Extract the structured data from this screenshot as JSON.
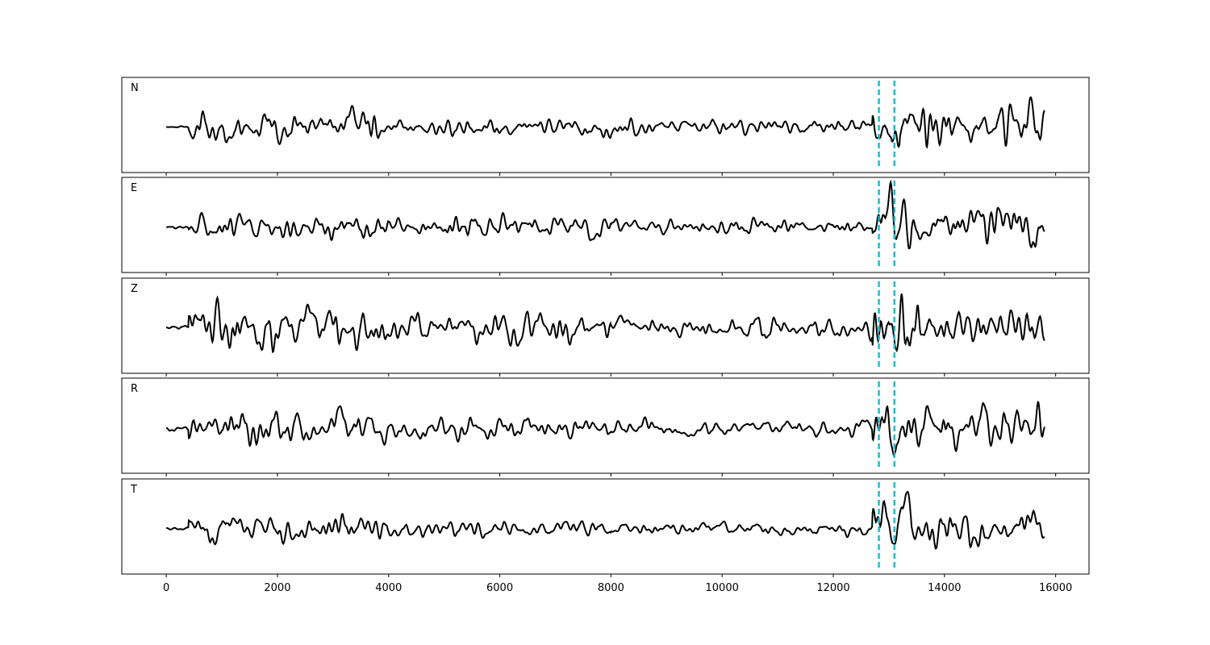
{
  "chart_data": {
    "type": "line",
    "title": "",
    "xlabel": "",
    "ylabel": "",
    "xlim": [
      -800,
      16600
    ],
    "x_ticks": [
      0,
      2000,
      4000,
      6000,
      8000,
      10000,
      12000,
      14000,
      16000
    ],
    "x_tick_labels": [
      "0",
      "2000",
      "4000",
      "6000",
      "8000",
      "10000",
      "12000",
      "14000",
      "16000"
    ],
    "x_range": [
      0,
      15800
    ],
    "y_ticks_visible": false,
    "grid": false,
    "line_color": "#000000",
    "marker_color": "#17becf",
    "markers": [
      12820,
      13100
    ],
    "panels": [
      {
        "label": "N",
        "seed": 11,
        "segments": [
          {
            "x": [
              0,
              400
            ],
            "amp": 0.08
          },
          {
            "x": [
              400,
              2000
            ],
            "amp": 0.45
          },
          {
            "x": [
              2000,
              4000
            ],
            "amp": 0.4
          },
          {
            "x": [
              4000,
              8000
            ],
            "amp": 0.25
          },
          {
            "x": [
              8000,
              12700
            ],
            "amp": 0.2
          },
          {
            "x": [
              12700,
              13200
            ],
            "amp": 0.8
          },
          {
            "x": [
              13200,
              15800
            ],
            "amp": 0.55
          }
        ]
      },
      {
        "label": "E",
        "seed": 23,
        "segments": [
          {
            "x": [
              0,
              400
            ],
            "amp": 0.08
          },
          {
            "x": [
              400,
              2200
            ],
            "amp": 0.35
          },
          {
            "x": [
              2200,
              4000
            ],
            "amp": 0.4
          },
          {
            "x": [
              4000,
              8000
            ],
            "amp": 0.3
          },
          {
            "x": [
              8000,
              12700
            ],
            "amp": 0.18
          },
          {
            "x": [
              12700,
              13400
            ],
            "amp": 0.85
          },
          {
            "x": [
              13400,
              15800
            ],
            "amp": 0.55
          }
        ]
      },
      {
        "label": "Z",
        "seed": 37,
        "segments": [
          {
            "x": [
              0,
              400
            ],
            "amp": 0.06
          },
          {
            "x": [
              400,
              1200
            ],
            "amp": 0.7
          },
          {
            "x": [
              1200,
              3200
            ],
            "amp": 0.5
          },
          {
            "x": [
              3200,
              8000
            ],
            "amp": 0.4
          },
          {
            "x": [
              8000,
              12700
            ],
            "amp": 0.25
          },
          {
            "x": [
              12700,
              13700
            ],
            "amp": 0.75
          },
          {
            "x": [
              13700,
              15800
            ],
            "amp": 0.5
          }
        ]
      },
      {
        "label": "R",
        "seed": 51,
        "segments": [
          {
            "x": [
              0,
              400
            ],
            "amp": 0.08
          },
          {
            "x": [
              400,
              2200
            ],
            "amp": 0.4
          },
          {
            "x": [
              2200,
              4000
            ],
            "amp": 0.4
          },
          {
            "x": [
              4000,
              8000
            ],
            "amp": 0.3
          },
          {
            "x": [
              8000,
              12700
            ],
            "amp": 0.2
          },
          {
            "x": [
              12700,
              13200
            ],
            "amp": 0.85
          },
          {
            "x": [
              13200,
              15800
            ],
            "amp": 0.55
          }
        ]
      },
      {
        "label": "T",
        "seed": 67,
        "segments": [
          {
            "x": [
              0,
              400
            ],
            "amp": 0.06
          },
          {
            "x": [
              400,
              2400
            ],
            "amp": 0.35
          },
          {
            "x": [
              2400,
              4000
            ],
            "amp": 0.35
          },
          {
            "x": [
              4000,
              8000
            ],
            "amp": 0.25
          },
          {
            "x": [
              8000,
              12700
            ],
            "amp": 0.15
          },
          {
            "x": [
              12700,
              13400
            ],
            "amp": 0.85
          },
          {
            "x": [
              13400,
              15800
            ],
            "amp": 0.5
          }
        ]
      }
    ]
  }
}
